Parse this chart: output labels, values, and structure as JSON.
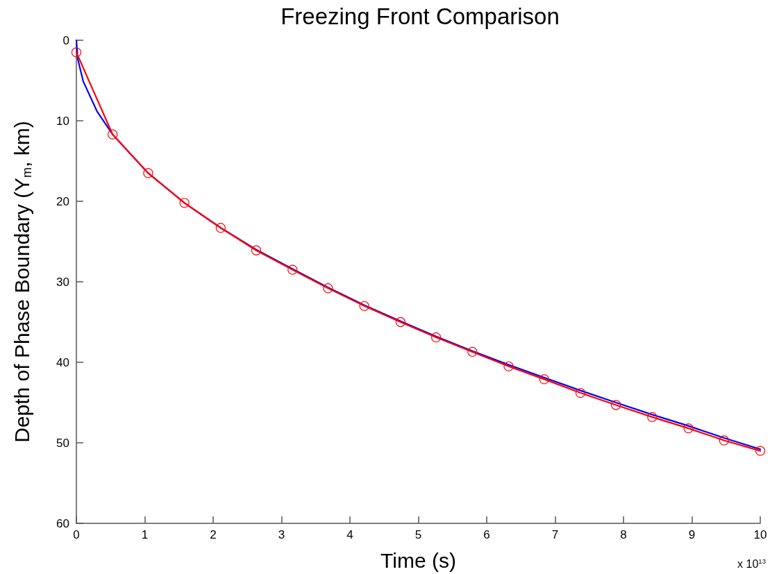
{
  "chart_data": {
    "type": "line",
    "title": "Freezing Front Comparison",
    "xlabel": "Time (s)",
    "ylabel": "Depth of Phase Boundary (Y$_{m}$, km)",
    "annotations": [
      "x 10$^{13}$"
    ],
    "xlim": [
      0,
      10
    ],
    "xticks": [
      0,
      1,
      2,
      3,
      4,
      5,
      6,
      7,
      8,
      9,
      10
    ],
    "ylim": [
      60,
      0
    ],
    "yticks": [
      0,
      10,
      20,
      30,
      40,
      50,
      60
    ],
    "series": [
      {
        "color": "#0000ff",
        "marker": "none",
        "x": [
          0,
          0.02,
          0.1,
          0.3,
          0.53,
          1.05,
          1.58,
          2.11,
          2.63,
          3.16,
          3.68,
          4.21,
          4.74,
          5.26,
          5.79,
          6.32,
          6.84,
          7.37,
          7.89,
          8.42,
          8.95,
          9.47,
          10
        ],
        "values": [
          0,
          2.3,
          5.1,
          8.8,
          11.7,
          16.5,
          20.2,
          23.3,
          26.0,
          28.4,
          30.7,
          32.9,
          34.9,
          36.8,
          38.6,
          40.3,
          41.9,
          43.5,
          45.0,
          46.5,
          47.9,
          49.4,
          50.8
        ]
      },
      {
        "color": "#ff0000",
        "marker": "circle",
        "x": [
          0,
          0.53,
          1.05,
          1.58,
          2.11,
          2.63,
          3.16,
          3.68,
          4.21,
          4.74,
          5.26,
          5.79,
          6.32,
          6.84,
          7.37,
          7.89,
          8.42,
          8.95,
          9.47,
          10
        ],
        "values": [
          1.5,
          11.7,
          16.5,
          20.2,
          23.3,
          26.1,
          28.5,
          30.8,
          33.0,
          35.0,
          36.9,
          38.7,
          40.5,
          42.1,
          43.8,
          45.3,
          46.8,
          48.2,
          49.7,
          51.0
        ]
      }
    ]
  }
}
